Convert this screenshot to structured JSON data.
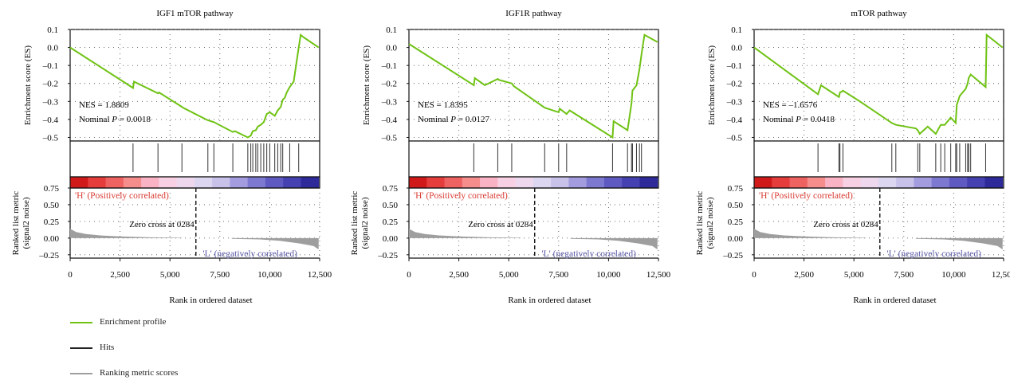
{
  "colors": {
    "enrichment": "#6fc214",
    "hits": "#333333",
    "metric": "#9e9e9e",
    "pos_text": "#d93b32",
    "neg_text": "#5959a8"
  },
  "legend": [
    {
      "label": "Enrichment profile",
      "color": "#6fc214"
    },
    {
      "label": "Hits",
      "color": "#222222"
    },
    {
      "label": "Ranking metric scores",
      "color": "#9e9e9e"
    }
  ],
  "chart_data": [
    {
      "type": "line",
      "title": "IGF1 mTOR pathway",
      "ylabel": "Enrichment score (ES)",
      "metric_ylabel": [
        "Ranked list metric",
        "(signal2 noise)"
      ],
      "xlabel": "Rank in ordered dataset",
      "xlim": [
        0,
        12500
      ],
      "ylim": [
        -0.52,
        0.1
      ],
      "metric_ylim": [
        -0.3,
        0.75
      ],
      "x_ticks": [
        0,
        2500,
        5000,
        7500,
        10000,
        12500
      ],
      "x_tick_labels": [
        "0",
        "2,500",
        "5,000",
        "7,500",
        "10,000",
        "12,500"
      ],
      "y_ticks": [
        0.1,
        0.0,
        -0.1,
        -0.2,
        -0.3,
        -0.4,
        -0.5
      ],
      "y_tick_labels": [
        "0.1",
        "0.0",
        "–0.1",
        "–0.2",
        "–0.3",
        "–0.4",
        "–0.5"
      ],
      "metric_ticks": [
        0.75,
        0.5,
        0.25,
        0.0,
        -0.25
      ],
      "metric_tick_labels": [
        "0.75",
        "0.50",
        "0.25",
        "0.00",
        "–0.25"
      ],
      "nes_text": "NES = 1.8809",
      "pval_label": "Nominal ",
      "pval_var": "P",
      "pval_value": " = 0.0018",
      "pos_label": "'H' (Positively correlated)",
      "neg_label": "'L' (negatively correlated)",
      "zero_cross_text": "Zero cross at 0284",
      "zero_cross_x": 6300,
      "es_points": [
        [
          0,
          0.0
        ],
        [
          3150,
          -0.225
        ],
        [
          3200,
          -0.19
        ],
        [
          4400,
          -0.255
        ],
        [
          4450,
          -0.25
        ],
        [
          5600,
          -0.33
        ],
        [
          5650,
          -0.335
        ],
        [
          6900,
          -0.405
        ],
        [
          7200,
          -0.415
        ],
        [
          8150,
          -0.47
        ],
        [
          8250,
          -0.465
        ],
        [
          8900,
          -0.5
        ],
        [
          9050,
          -0.49
        ],
        [
          9150,
          -0.465
        ],
        [
          9300,
          -0.46
        ],
        [
          9400,
          -0.44
        ],
        [
          9550,
          -0.43
        ],
        [
          9700,
          -0.415
        ],
        [
          9850,
          -0.37
        ],
        [
          10000,
          -0.36
        ],
        [
          10250,
          -0.38
        ],
        [
          10400,
          -0.35
        ],
        [
          10550,
          -0.33
        ],
        [
          10650,
          -0.29
        ],
        [
          10750,
          -0.28
        ],
        [
          10850,
          -0.25
        ],
        [
          11000,
          -0.22
        ],
        [
          11200,
          -0.19
        ],
        [
          11450,
          0.0
        ],
        [
          11550,
          0.07
        ],
        [
          11650,
          0.06
        ],
        [
          12450,
          0.0
        ]
      ],
      "hits": [
        3150,
        4400,
        5600,
        6900,
        7200,
        8150,
        8900,
        9050,
        9150,
        9300,
        9400,
        9550,
        9700,
        9850,
        10000,
        10250,
        10400,
        10550,
        10650,
        11000,
        11450
      ],
      "pos_metric": [
        [
          0,
          0.14
        ],
        [
          300,
          0.09
        ],
        [
          800,
          0.06
        ],
        [
          1500,
          0.04
        ],
        [
          2500,
          0.025
        ],
        [
          4000,
          0.012
        ],
        [
          5600,
          0.005
        ]
      ],
      "neg_metric": [
        [
          8100,
          -0.01
        ],
        [
          9500,
          -0.02
        ],
        [
          10500,
          -0.04
        ],
        [
          11500,
          -0.08
        ],
        [
          12200,
          -0.12
        ],
        [
          12450,
          -0.17
        ]
      ],
      "heat_colors": [
        "#d01a1a",
        "#e53c3c",
        "#ef6262",
        "#f68d8d",
        "#f9b3c5",
        "#f8d0e3",
        "#eed8ee",
        "#ddd6f0",
        "#c8c1ea",
        "#a39ddf",
        "#7d78d0",
        "#5f5ac2",
        "#4541b0",
        "#2e2a9a"
      ]
    },
    {
      "type": "line",
      "title": "IGF1R pathway",
      "ylabel": "Enrichment score (ES)",
      "metric_ylabel": [
        "Ranked list metric",
        "(signal2 noise)"
      ],
      "xlabel": "Rank in ordered dataset",
      "xlim": [
        0,
        12500
      ],
      "ylim": [
        -0.52,
        0.1
      ],
      "metric_ylim": [
        -0.3,
        0.75
      ],
      "x_ticks": [
        0,
        2500,
        5000,
        7500,
        10000,
        12500
      ],
      "x_tick_labels": [
        "0",
        "2,500",
        "5,000",
        "7,500",
        "10,000",
        "12,500"
      ],
      "y_ticks": [
        0.1,
        0.0,
        -0.1,
        -0.2,
        -0.3,
        -0.4,
        -0.5
      ],
      "y_tick_labels": [
        "0.1",
        "0.0",
        "–0.1",
        "–0.2",
        "–0.3",
        "–0.4",
        "–0.5"
      ],
      "metric_ticks": [
        0.75,
        0.5,
        0.25,
        0.0,
        -0.25
      ],
      "metric_tick_labels": [
        "0.75",
        "0.50",
        "0.25",
        "0.00",
        "–0.25"
      ],
      "nes_text": "NES = 1.8395",
      "pval_label": "Nominal ",
      "pval_var": "P",
      "pval_value": " = 0.0127",
      "pos_label": "'H' (Positively correlated)",
      "neg_label": "'L' (negatively correlated)",
      "zero_cross_text": "Zero cross at 0284",
      "zero_cross_x": 6300,
      "es_points": [
        [
          0,
          0.02
        ],
        [
          3250,
          -0.21
        ],
        [
          3300,
          -0.17
        ],
        [
          3800,
          -0.21
        ],
        [
          4450,
          -0.175
        ],
        [
          4500,
          -0.18
        ],
        [
          5150,
          -0.2
        ],
        [
          5250,
          -0.215
        ],
        [
          6800,
          -0.335
        ],
        [
          7500,
          -0.36
        ],
        [
          7550,
          -0.34
        ],
        [
          7900,
          -0.37
        ],
        [
          8050,
          -0.35
        ],
        [
          10200,
          -0.5
        ],
        [
          10250,
          -0.41
        ],
        [
          10950,
          -0.46
        ],
        [
          11150,
          -0.31
        ],
        [
          11200,
          -0.24
        ],
        [
          11400,
          -0.21
        ],
        [
          11550,
          -0.12
        ],
        [
          11650,
          -0.04
        ],
        [
          11700,
          0.0
        ],
        [
          11800,
          0.07
        ],
        [
          12450,
          0.03
        ]
      ],
      "hits": [
        3250,
        4450,
        5150,
        6800,
        7500,
        7900,
        10200,
        10950,
        11150,
        11200,
        11400,
        11550,
        11650
      ],
      "pos_metric": [
        [
          0,
          0.14
        ],
        [
          300,
          0.09
        ],
        [
          800,
          0.06
        ],
        [
          1500,
          0.04
        ],
        [
          2500,
          0.025
        ],
        [
          4000,
          0.012
        ],
        [
          5600,
          0.005
        ]
      ],
      "neg_metric": [
        [
          8100,
          -0.01
        ],
        [
          9500,
          -0.02
        ],
        [
          10500,
          -0.04
        ],
        [
          11500,
          -0.08
        ],
        [
          12200,
          -0.12
        ],
        [
          12450,
          -0.17
        ]
      ],
      "heat_colors": [
        "#d01a1a",
        "#e53c3c",
        "#ef6262",
        "#f68d8d",
        "#f9b3c5",
        "#f8d0e3",
        "#eed8ee",
        "#ddd6f0",
        "#c8c1ea",
        "#a39ddf",
        "#7d78d0",
        "#5f5ac2",
        "#4541b0",
        "#2e2a9a"
      ]
    },
    {
      "type": "line",
      "title": "mTOR pathway",
      "ylabel": "Enrichment score (ES)",
      "metric_ylabel": [
        "Ranked list metric",
        "(signal2 noise)"
      ],
      "xlabel": "Rank in ordered dataset",
      "xlim": [
        0,
        12500
      ],
      "ylim": [
        -0.52,
        0.1
      ],
      "metric_ylim": [
        -0.3,
        0.75
      ],
      "x_ticks": [
        0,
        2500,
        5000,
        7500,
        10000,
        12500
      ],
      "x_tick_labels": [
        "0",
        "2,500",
        "5,000",
        "7,500",
        "10,000",
        "12,500"
      ],
      "y_ticks": [
        0.1,
        0.0,
        -0.1,
        -0.2,
        -0.3,
        -0.4,
        -0.5
      ],
      "y_tick_labels": [
        "0.1",
        "0.0",
        "–0.1",
        "–0.2",
        "–0.3",
        "–0.4",
        "–0.5"
      ],
      "metric_ticks": [
        0.75,
        0.5,
        0.25,
        0.0,
        -0.25
      ],
      "metric_tick_labels": [
        "0.75",
        "0.50",
        "0.25",
        "0.00",
        "–0.25"
      ],
      "nes_text": "NES = –1.6576",
      "pval_label": "Nominal ",
      "pval_var": "P",
      "pval_value": " = 0.0418",
      "pos_label": "'H' (Positively correlated)",
      "neg_label": "'L' (negatively correlated)",
      "zero_cross_text": "Zero cross at 0284",
      "zero_cross_x": 6300,
      "es_points": [
        [
          0,
          0.0
        ],
        [
          3200,
          -0.26
        ],
        [
          3350,
          -0.21
        ],
        [
          4250,
          -0.275
        ],
        [
          4300,
          -0.25
        ],
        [
          4400,
          -0.245
        ],
        [
          4450,
          -0.24
        ],
        [
          5300,
          -0.3
        ],
        [
          6900,
          -0.42
        ],
        [
          7100,
          -0.43
        ],
        [
          8100,
          -0.45
        ],
        [
          8200,
          -0.46
        ],
        [
          8300,
          -0.48
        ],
        [
          8700,
          -0.44
        ],
        [
          9100,
          -0.48
        ],
        [
          9350,
          -0.43
        ],
        [
          9550,
          -0.43
        ],
        [
          9850,
          -0.39
        ],
        [
          10100,
          -0.42
        ],
        [
          10150,
          -0.32
        ],
        [
          10300,
          -0.27
        ],
        [
          10600,
          -0.23
        ],
        [
          10700,
          -0.2
        ],
        [
          10750,
          -0.17
        ],
        [
          10850,
          -0.15
        ],
        [
          11600,
          -0.22
        ],
        [
          11650,
          0.07
        ],
        [
          12450,
          0.0
        ]
      ],
      "hits": [
        3200,
        4250,
        4300,
        4450,
        6900,
        7100,
        8200,
        8300,
        9100,
        9350,
        9550,
        9850,
        10100,
        10150,
        10300,
        10600,
        10700,
        10750,
        10850,
        11600
      ],
      "pos_metric": [
        [
          0,
          0.14
        ],
        [
          300,
          0.09
        ],
        [
          800,
          0.06
        ],
        [
          1500,
          0.04
        ],
        [
          2500,
          0.025
        ],
        [
          4000,
          0.012
        ],
        [
          5600,
          0.005
        ]
      ],
      "neg_metric": [
        [
          8100,
          -0.01
        ],
        [
          9500,
          -0.02
        ],
        [
          10500,
          -0.04
        ],
        [
          11500,
          -0.08
        ],
        [
          12200,
          -0.12
        ],
        [
          12450,
          -0.17
        ]
      ],
      "heat_colors": [
        "#d01a1a",
        "#e53c3c",
        "#ef6262",
        "#f68d8d",
        "#f9b3c5",
        "#f8d0e3",
        "#eed8ee",
        "#ddd6f0",
        "#c8c1ea",
        "#a39ddf",
        "#7d78d0",
        "#5f5ac2",
        "#4541b0",
        "#2e2a9a"
      ]
    }
  ]
}
